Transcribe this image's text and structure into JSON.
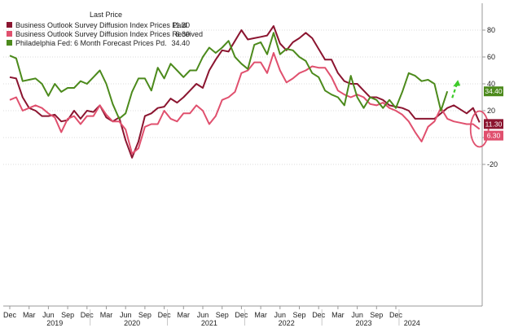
{
  "chart_data": {
    "type": "line",
    "legend": {
      "header": "Last Price",
      "position": "top-left"
    },
    "series": [
      {
        "name": "Business Outlook Survey Diffusion Index Prices Paid",
        "last_label": "11.30",
        "last_value": 11.3,
        "color": "#8b1530",
        "values": [
          45,
          44,
          30,
          22,
          20,
          16,
          16,
          17,
          12,
          13,
          20,
          14,
          20,
          19,
          24,
          15,
          12,
          15,
          -2,
          -15,
          -3,
          16,
          18,
          22,
          23,
          29,
          26,
          30,
          35,
          40,
          37,
          50,
          58,
          65,
          64,
          72,
          80,
          73,
          74,
          75,
          76,
          83,
          70,
          65,
          71,
          74,
          78,
          74,
          66,
          58,
          58,
          48,
          42,
          40,
          40,
          35,
          30,
          30,
          28,
          24,
          23,
          22,
          20,
          14,
          14,
          14,
          14,
          18,
          22,
          24,
          21,
          18,
          22,
          11.3
        ]
      },
      {
        "name": "Business Outlook Survey Diffusion Index Prices Received",
        "last_label": "6.30",
        "last_value": 6.3,
        "color": "#e0506e",
        "values": [
          28,
          30,
          20,
          22,
          24,
          22,
          18,
          15,
          4,
          14,
          16,
          10,
          16,
          16,
          24,
          17,
          12,
          12,
          6,
          -12,
          -8,
          8,
          10,
          10,
          20,
          14,
          12,
          18,
          18,
          24,
          20,
          10,
          16,
          28,
          30,
          34,
          48,
          50,
          56,
          56,
          48,
          63,
          50,
          41,
          44,
          48,
          50,
          53,
          52,
          52,
          45,
          35,
          32,
          30,
          32,
          30,
          25,
          24,
          26,
          22,
          20,
          17,
          12,
          4,
          -3,
          8,
          12,
          22,
          14,
          12,
          11,
          10,
          10,
          6.3
        ]
      },
      {
        "name": "Philadelphia Fed: 6 Month Forecast Prices Pd.",
        "last_label": "34.40",
        "last_value": 34.4,
        "color": "#4c8a1c",
        "values": [
          61,
          59,
          42,
          43,
          44,
          40,
          31,
          40,
          34,
          37,
          37,
          42,
          40,
          45,
          50,
          40,
          25,
          14,
          18,
          34,
          44,
          44,
          35,
          52,
          44,
          55,
          50,
          45,
          50,
          50,
          60,
          67,
          63,
          67,
          72,
          60,
          55,
          51,
          69,
          71,
          62,
          78,
          62,
          66,
          65,
          60,
          57,
          48,
          45,
          35,
          32,
          30,
          24,
          46,
          30,
          22,
          30,
          28,
          22,
          28,
          22,
          34,
          48,
          46,
          42,
          43,
          40,
          20,
          34.4
        ]
      }
    ],
    "x_axis": {
      "months": [
        "Dec",
        "Mar",
        "Jun",
        "Sep",
        "Dec",
        "Mar",
        "Jun",
        "Sep",
        "Dec",
        "Mar",
        "Jun",
        "Sep",
        "Dec",
        "Mar",
        "Jun",
        "Sep",
        "Dec",
        "Mar",
        "Jun",
        "Sep",
        "Dec"
      ],
      "years": [
        "2019",
        "2020",
        "2021",
        "2022",
        "2023",
        "2024"
      ],
      "range": [
        "Dec 2018",
        "Feb 2024"
      ]
    },
    "y_axis": {
      "ticks": [
        "80",
        "60",
        "40",
        "20",
        "0",
        "-20"
      ],
      "range": [
        -20,
        85
      ],
      "position": "right"
    },
    "annotations": [
      {
        "type": "ellipse-highlight",
        "color": "#e0506e",
        "target": "latest readings, Prices Paid and Prices Received"
      },
      {
        "type": "dashed-arrow-up",
        "color": "#3ecb2a",
        "target": "latest reading, 6 Month Forecast Prices Pd."
      }
    ],
    "grid": "horizontal dotted"
  }
}
